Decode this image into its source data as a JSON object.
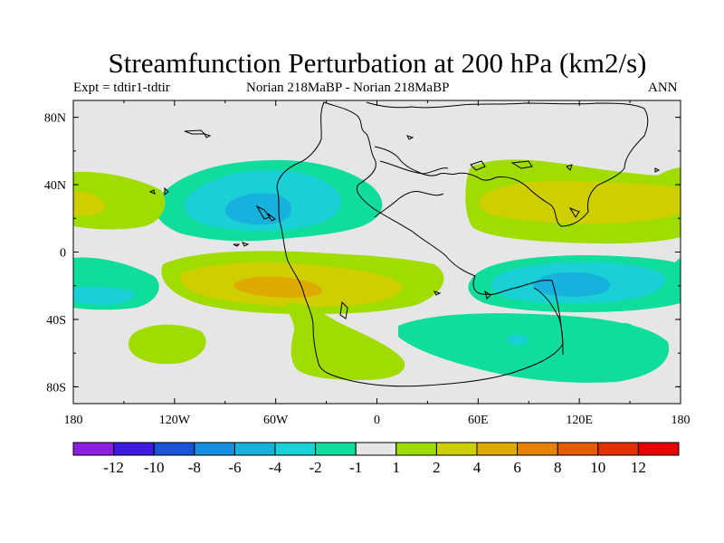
{
  "title": "Streamfunction Perturbation at 200 hPa (km2/s)",
  "subtitle": {
    "left": "Expt = tdtir1-tdtir",
    "center": "Norian   218MaBP - Norian   218MaBP",
    "right": "ANN"
  },
  "chart_data": {
    "type": "contour-map",
    "variable": "Streamfunction Perturbation",
    "level": "200 hPa",
    "units": "km2/s",
    "projection": "cylindrical equidistant",
    "xlim": [
      -180,
      180
    ],
    "ylim": [
      -90,
      90
    ],
    "x_ticks": [
      {
        "value": -180,
        "label": "180"
      },
      {
        "value": -120,
        "label": "120W"
      },
      {
        "value": -60,
        "label": "60W"
      },
      {
        "value": 0,
        "label": "0"
      },
      {
        "value": 60,
        "label": "60E"
      },
      {
        "value": 120,
        "label": "120E"
      },
      {
        "value": 180,
        "label": "180"
      }
    ],
    "y_ticks": [
      {
        "value": 80,
        "label": "80N"
      },
      {
        "value": 40,
        "label": "40N"
      },
      {
        "value": 0,
        "label": "0"
      },
      {
        "value": -40,
        "label": "40S"
      },
      {
        "value": -80,
        "label": "80S"
      }
    ],
    "background_color": "#e6e6e6",
    "colorbar": {
      "levels": [
        "-12",
        "-10",
        "-8",
        "-6",
        "-4",
        "-2",
        "-1",
        "1",
        "2",
        "4",
        "6",
        "8",
        "10",
        "12"
      ],
      "colors": [
        "#8a1fe0",
        "#3c18e0",
        "#1a52d8",
        "#1690dc",
        "#18b0dc",
        "#18d0d6",
        "#10dc9c",
        "#e6e6e6",
        "#a0dc00",
        "#cfcf00",
        "#deaa00",
        "#e68200",
        "#e65a00",
        "#e63000",
        "#e60000"
      ]
    },
    "features": [
      {
        "name": "NE Pacific / N America negative cell",
        "center_lon": -73,
        "center_lat": 25,
        "min_value": -4
      },
      {
        "name": "S Pacific / S America positive cell",
        "center_lon": -65,
        "center_lat": -20,
        "max_value": 6
      },
      {
        "name": "Indian Ocean / Australia negative cell",
        "center_lon": 115,
        "center_lat": -18,
        "min_value": -4
      },
      {
        "name": "Asia / N Pacific positive cell",
        "center_lon": 95,
        "center_lat": 28,
        "max_value": 4
      },
      {
        "name": "Central N Pacific positive band",
        "center_lon": -170,
        "center_lat": 30,
        "max_value": 4
      },
      {
        "name": "SW Pacific negative cell",
        "center_lon": -170,
        "center_lat": -25,
        "min_value": -4
      },
      {
        "name": "S Pacific positive patch",
        "center_lon": -138,
        "center_lat": -53,
        "max_value": 2
      },
      {
        "name": "S Atlantic / Southern Ocean positive band",
        "center_lon": -20,
        "center_lat": -60,
        "max_value": 2
      },
      {
        "name": "Southern Ocean negative band",
        "center_lon": 95,
        "center_lat": -65,
        "min_value": -2
      }
    ]
  }
}
